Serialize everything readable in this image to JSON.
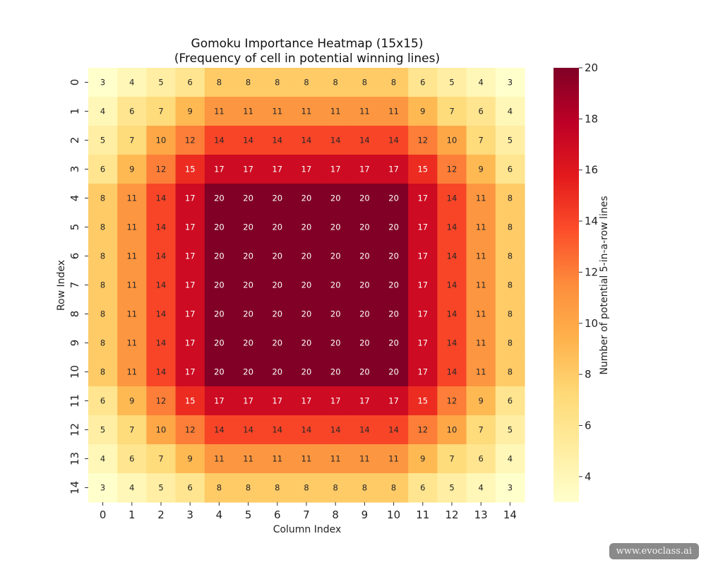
{
  "chart_data": {
    "type": "heatmap",
    "title": "Gomoku Importance Heatmap (15x15)",
    "subtitle": "(Frequency of cell in potential winning lines)",
    "xlabel": "Column Index",
    "ylabel": "Row Index",
    "x_categories": [
      "0",
      "1",
      "2",
      "3",
      "4",
      "5",
      "6",
      "7",
      "8",
      "9",
      "10",
      "11",
      "12",
      "13",
      "14"
    ],
    "y_categories": [
      "0",
      "1",
      "2",
      "3",
      "4",
      "5",
      "6",
      "7",
      "8",
      "9",
      "10",
      "11",
      "12",
      "13",
      "14"
    ],
    "values": [
      [
        3,
        4,
        5,
        6,
        8,
        8,
        8,
        8,
        8,
        8,
        8,
        6,
        5,
        4,
        3
      ],
      [
        4,
        6,
        7,
        9,
        11,
        11,
        11,
        11,
        11,
        11,
        11,
        9,
        7,
        6,
        4
      ],
      [
        5,
        7,
        10,
        12,
        14,
        14,
        14,
        14,
        14,
        14,
        14,
        12,
        10,
        7,
        5
      ],
      [
        6,
        9,
        12,
        15,
        17,
        17,
        17,
        17,
        17,
        17,
        17,
        15,
        12,
        9,
        6
      ],
      [
        8,
        11,
        14,
        17,
        20,
        20,
        20,
        20,
        20,
        20,
        20,
        17,
        14,
        11,
        8
      ],
      [
        8,
        11,
        14,
        17,
        20,
        20,
        20,
        20,
        20,
        20,
        20,
        17,
        14,
        11,
        8
      ],
      [
        8,
        11,
        14,
        17,
        20,
        20,
        20,
        20,
        20,
        20,
        20,
        17,
        14,
        11,
        8
      ],
      [
        8,
        11,
        14,
        17,
        20,
        20,
        20,
        20,
        20,
        20,
        20,
        17,
        14,
        11,
        8
      ],
      [
        8,
        11,
        14,
        17,
        20,
        20,
        20,
        20,
        20,
        20,
        20,
        17,
        14,
        11,
        8
      ],
      [
        8,
        11,
        14,
        17,
        20,
        20,
        20,
        20,
        20,
        20,
        20,
        17,
        14,
        11,
        8
      ],
      [
        8,
        11,
        14,
        17,
        20,
        20,
        20,
        20,
        20,
        20,
        20,
        17,
        14,
        11,
        8
      ],
      [
        6,
        9,
        12,
        15,
        17,
        17,
        17,
        17,
        17,
        17,
        17,
        15,
        12,
        9,
        6
      ],
      [
        5,
        7,
        10,
        12,
        14,
        14,
        14,
        14,
        14,
        14,
        14,
        12,
        10,
        7,
        5
      ],
      [
        4,
        6,
        7,
        9,
        11,
        11,
        11,
        11,
        11,
        11,
        11,
        9,
        7,
        6,
        4
      ],
      [
        3,
        4,
        5,
        6,
        8,
        8,
        8,
        8,
        8,
        8,
        8,
        6,
        5,
        4,
        3
      ]
    ],
    "colormap": "YlOrRd",
    "value_range": [
      3,
      20
    ],
    "colorbar": {
      "label": "Number of potential 5-in-a-row lines",
      "ticks": [
        "4",
        "6",
        "8",
        "10",
        "12",
        "14",
        "16",
        "18",
        "20"
      ]
    },
    "annotations": "cell values shown in each cell"
  },
  "watermark": "www.evoclass.ai"
}
